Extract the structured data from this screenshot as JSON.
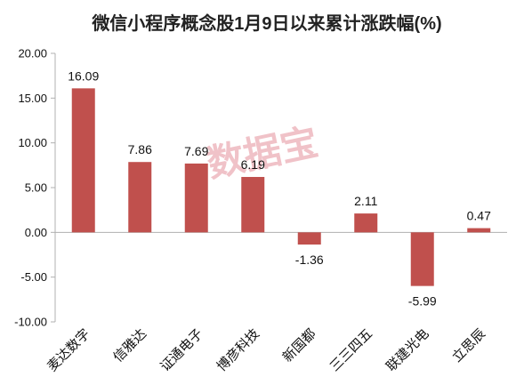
{
  "chart_data": {
    "type": "bar",
    "title": "微信小程序概念股1月9日以来累计涨跌幅(%)",
    "categories": [
      "麦达数字",
      "信雅达",
      "证通电子",
      "博彦科技",
      "新国都",
      "三三四五",
      "联建光电",
      "立思辰"
    ],
    "values": [
      16.09,
      7.86,
      7.69,
      6.19,
      -1.36,
      2.11,
      -5.99,
      0.47
    ],
    "value_labels": [
      "16.09",
      "7.86",
      "7.69",
      "6.19",
      "-1.36",
      "2.11",
      "-5.99",
      "0.47"
    ],
    "ylim": [
      -10,
      20
    ],
    "yticks": [
      20,
      15,
      10,
      5,
      0,
      -5,
      -10
    ],
    "ytick_labels": [
      "20.00",
      "15.00",
      "10.00",
      "5.00",
      "0.00",
      "-5.00",
      "-10.00"
    ],
    "xlabel": "",
    "ylabel": "",
    "grid": false,
    "legend": "none",
    "bar_color": "#c0504d"
  },
  "watermark": "数据宝"
}
